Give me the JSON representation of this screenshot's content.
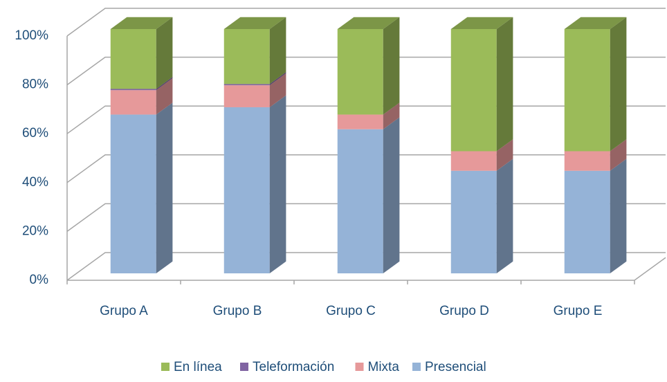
{
  "chart_data": {
    "type": "bar3d_stacked",
    "categories": [
      "Grupo A",
      "Grupo B",
      "Grupo C",
      "Grupo D",
      "Grupo E"
    ],
    "series": [
      {
        "name": "En línea",
        "color": "#9bbb59",
        "values": [
          24.5,
          22.5,
          35,
          50,
          50
        ]
      },
      {
        "name": "Teleformación",
        "color": "#8064a2",
        "values": [
          0.5,
          0.5,
          0,
          0,
          0
        ]
      },
      {
        "name": "Mixta",
        "color": "#e6999a",
        "values": [
          10,
          9,
          6,
          8,
          8
        ]
      },
      {
        "name": "Presencial",
        "color": "#95b3d7",
        "values": [
          65,
          68,
          59,
          42,
          42
        ]
      }
    ],
    "ylim": [
      0,
      100
    ],
    "yticks": [
      {
        "value": 0,
        "label": "0%"
      },
      {
        "value": 20,
        "label": "20%"
      },
      {
        "value": 40,
        "label": "40%"
      },
      {
        "value": 60,
        "label": "60%"
      },
      {
        "value": 80,
        "label": "80%"
      },
      {
        "value": 100,
        "label": "100%"
      }
    ],
    "grid": true,
    "legend": "bottom"
  }
}
